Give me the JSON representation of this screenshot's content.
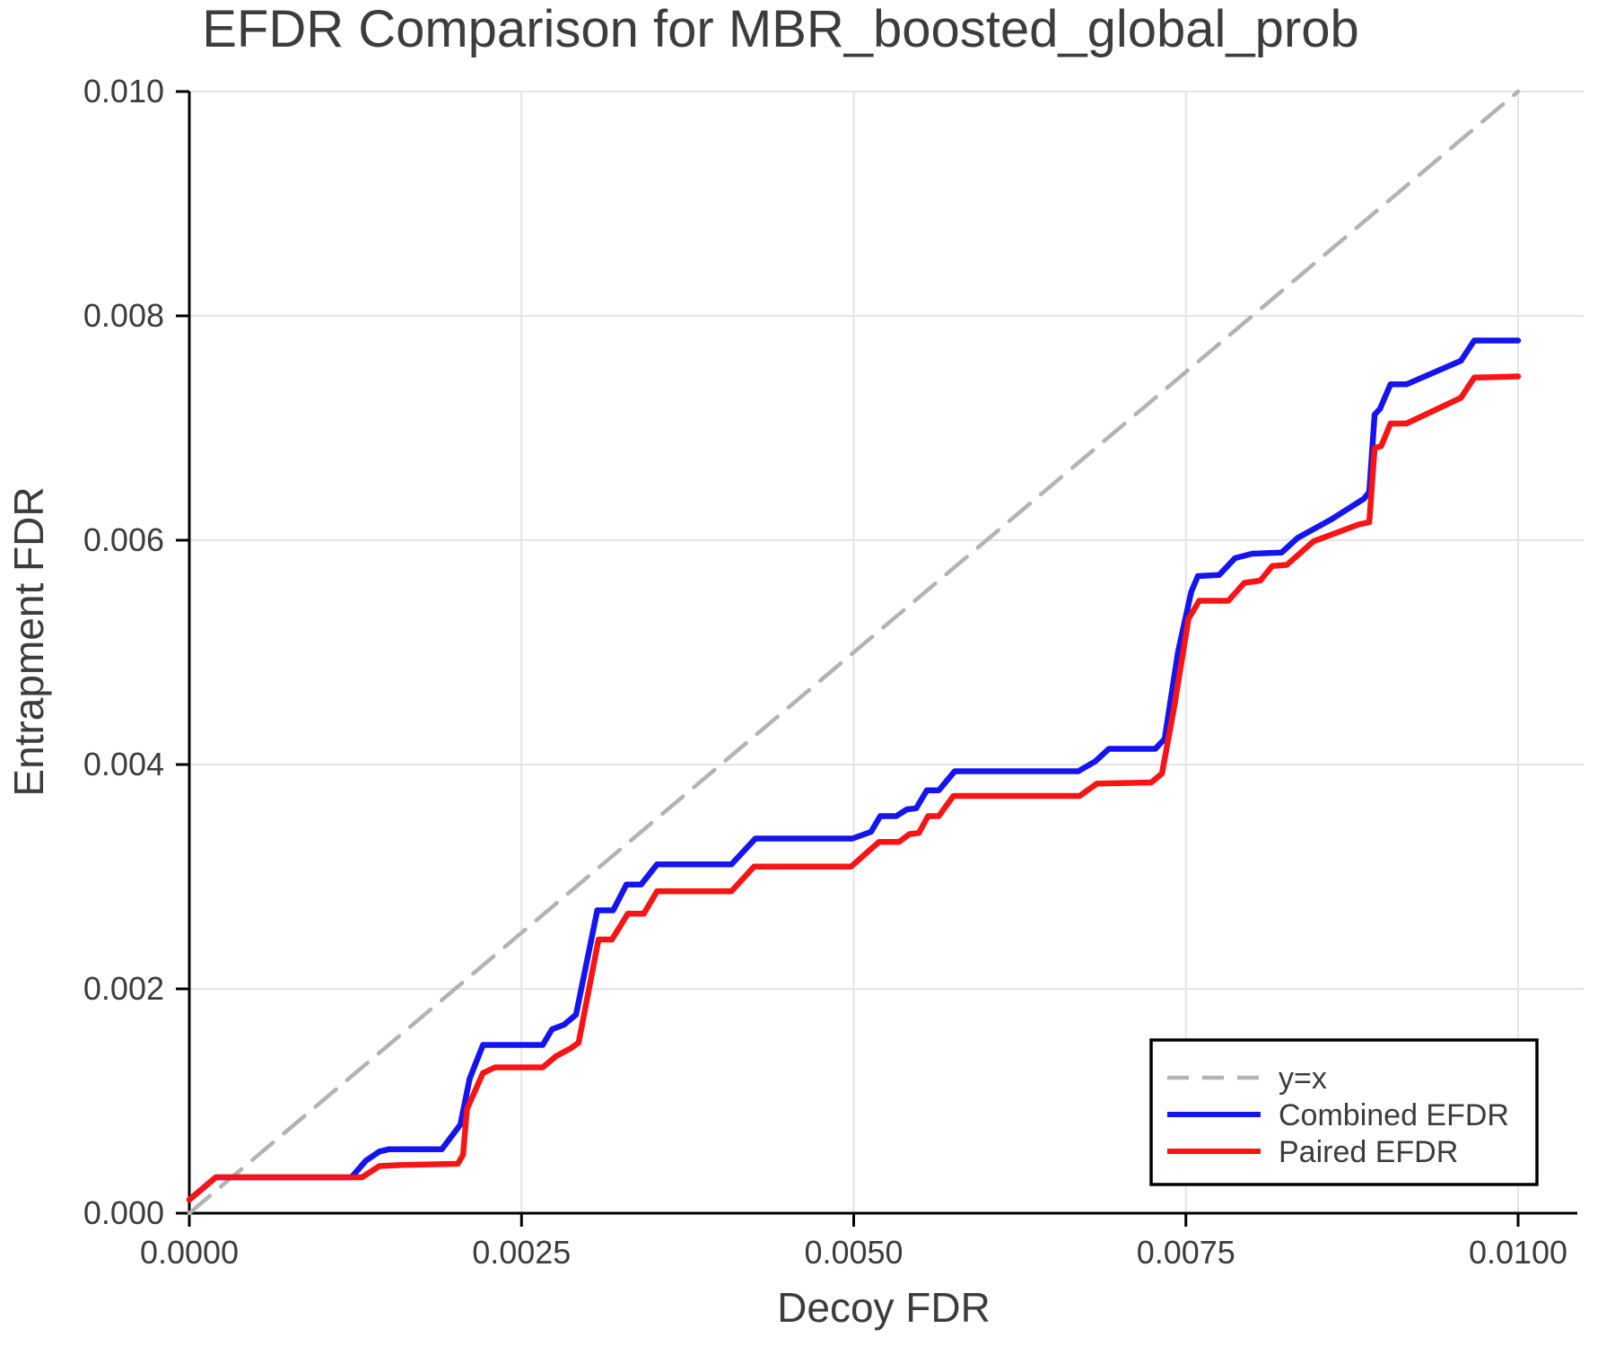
{
  "title": "EFDR Comparison for MBR_boosted_global_prob",
  "colors": {
    "background": "#ffffff",
    "text": "#3c3c3c",
    "axis": "#000000",
    "gridline": "#e4e4e4",
    "identity_line": "#b3b3b3",
    "combined_line": "#1414f0",
    "paired_line": "#f81414",
    "legend_border": "#000000",
    "legend_background": "#ffffff"
  },
  "chart_data": {
    "type": "line",
    "title": "EFDR Comparison for MBR_boosted_global_prob",
    "xlabel": "Decoy FDR",
    "ylabel": "Entrapment FDR",
    "xlim": [
      0.0,
      0.0105
    ],
    "ylim": [
      0.0,
      0.01
    ],
    "grid": true,
    "legend_position": "lower right",
    "x_ticks": [
      0.0,
      0.0025,
      0.005,
      0.0075,
      0.01
    ],
    "x_tick_labels": [
      "0.0000",
      "0.0025",
      "0.0050",
      "0.0075",
      "0.0100"
    ],
    "y_ticks": [
      0.0,
      0.002,
      0.004,
      0.006,
      0.008,
      0.01
    ],
    "y_tick_labels": [
      "0.000",
      "0.002",
      "0.004",
      "0.006",
      "0.008",
      "0.010"
    ],
    "series": [
      {
        "name": "y=x",
        "style": "dashed",
        "color": "#b3b3b3",
        "stroke_width": 4.5,
        "points": [
          [
            0.0,
            0.0
          ],
          [
            0.01,
            0.01
          ]
        ]
      },
      {
        "name": "Combined EFDR",
        "style": "solid",
        "color": "#1414f0",
        "stroke_width": 6.5,
        "points": [
          [
            0.0,
            0.00012
          ],
          [
            0.0002,
            0.00032
          ],
          [
            0.00122,
            0.00032
          ],
          [
            0.00133,
            0.00047
          ],
          [
            0.00143,
            0.00055
          ],
          [
            0.0015,
            0.00057
          ],
          [
            0.0019,
            0.00057
          ],
          [
            0.00204,
            0.00079
          ],
          [
            0.00211,
            0.0012
          ],
          [
            0.00221,
            0.0015
          ],
          [
            0.00266,
            0.0015
          ],
          [
            0.00273,
            0.00164
          ],
          [
            0.00282,
            0.00168
          ],
          [
            0.00291,
            0.00177
          ],
          [
            0.00307,
            0.0027
          ],
          [
            0.00319,
            0.0027
          ],
          [
            0.00329,
            0.00293
          ],
          [
            0.0034,
            0.00293
          ],
          [
            0.00352,
            0.00311
          ],
          [
            0.00408,
            0.00311
          ],
          [
            0.00426,
            0.00334
          ],
          [
            0.00499,
            0.00334
          ],
          [
            0.00513,
            0.0034
          ],
          [
            0.0052,
            0.00354
          ],
          [
            0.00532,
            0.00354
          ],
          [
            0.0054,
            0.0036
          ],
          [
            0.00547,
            0.00361
          ],
          [
            0.00555,
            0.00377
          ],
          [
            0.00564,
            0.00377
          ],
          [
            0.00576,
            0.00394
          ],
          [
            0.00669,
            0.00394
          ],
          [
            0.00682,
            0.00403
          ],
          [
            0.00692,
            0.00414
          ],
          [
            0.00727,
            0.00414
          ],
          [
            0.00734,
            0.00423
          ],
          [
            0.00744,
            0.005
          ],
          [
            0.00754,
            0.00554
          ],
          [
            0.00759,
            0.00568
          ],
          [
            0.00775,
            0.00569
          ],
          [
            0.00787,
            0.00584
          ],
          [
            0.008,
            0.00588
          ],
          [
            0.00822,
            0.00589
          ],
          [
            0.00834,
            0.00602
          ],
          [
            0.0086,
            0.00619
          ],
          [
            0.00884,
            0.00637
          ],
          [
            0.00888,
            0.00643
          ],
          [
            0.00892,
            0.00712
          ],
          [
            0.00896,
            0.00717
          ],
          [
            0.00904,
            0.00739
          ],
          [
            0.00916,
            0.00739
          ],
          [
            0.00957,
            0.0076
          ],
          [
            0.00967,
            0.00778
          ],
          [
            0.01,
            0.00778
          ]
        ]
      },
      {
        "name": "Paired EFDR",
        "style": "solid",
        "color": "#f81414",
        "stroke_width": 6.5,
        "points": [
          [
            0.0,
            0.00012
          ],
          [
            0.0002,
            0.00032
          ],
          [
            0.0013,
            0.00032
          ],
          [
            0.00143,
            0.00042
          ],
          [
            0.0016,
            0.00043
          ],
          [
            0.00202,
            0.00044
          ],
          [
            0.00206,
            0.00052
          ],
          [
            0.00209,
            0.00093
          ],
          [
            0.00212,
            0.00101
          ],
          [
            0.00221,
            0.00125
          ],
          [
            0.0023,
            0.0013
          ],
          [
            0.00266,
            0.0013
          ],
          [
            0.00276,
            0.0014
          ],
          [
            0.00287,
            0.00147
          ],
          [
            0.00293,
            0.00152
          ],
          [
            0.00308,
            0.00244
          ],
          [
            0.00318,
            0.00244
          ],
          [
            0.0033,
            0.00267
          ],
          [
            0.00342,
            0.00267
          ],
          [
            0.00352,
            0.00287
          ],
          [
            0.00408,
            0.00287
          ],
          [
            0.00425,
            0.00309
          ],
          [
            0.00498,
            0.00309
          ],
          [
            0.00519,
            0.00331
          ],
          [
            0.00534,
            0.00331
          ],
          [
            0.00542,
            0.00338
          ],
          [
            0.00549,
            0.00339
          ],
          [
            0.00556,
            0.00354
          ],
          [
            0.00564,
            0.00354
          ],
          [
            0.00575,
            0.00372
          ],
          [
            0.0067,
            0.00372
          ],
          [
            0.00683,
            0.00383
          ],
          [
            0.00724,
            0.00384
          ],
          [
            0.00732,
            0.00392
          ],
          [
            0.00741,
            0.0045
          ],
          [
            0.00752,
            0.0053
          ],
          [
            0.0076,
            0.00546
          ],
          [
            0.00782,
            0.00546
          ],
          [
            0.00794,
            0.00562
          ],
          [
            0.00806,
            0.00564
          ],
          [
            0.00815,
            0.00577
          ],
          [
            0.00826,
            0.00578
          ],
          [
            0.00846,
            0.00599
          ],
          [
            0.0088,
            0.00614
          ],
          [
            0.00888,
            0.00616
          ],
          [
            0.00892,
            0.00682
          ],
          [
            0.00897,
            0.00684
          ],
          [
            0.00904,
            0.00704
          ],
          [
            0.00916,
            0.00704
          ],
          [
            0.00957,
            0.00727
          ],
          [
            0.00967,
            0.00745
          ],
          [
            0.01,
            0.00746
          ]
        ]
      }
    ],
    "legend": {
      "entries": [
        "y=x",
        "Combined EFDR",
        "Paired EFDR"
      ]
    }
  }
}
